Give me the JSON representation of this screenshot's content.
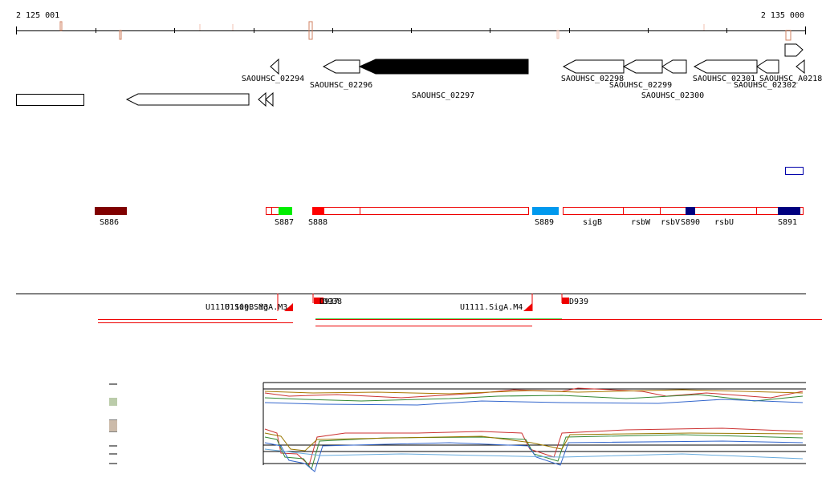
{
  "ruler": {
    "start": "2 125 001",
    "end": "2 135 000"
  },
  "genes": [
    "SAOUHSC_02294",
    "SAOUHSC_02296",
    "SAOUHSC_02297",
    "SAOUHSC_02298",
    "SAOUHSC_02299",
    "SAOUHSC_02300",
    "SAOUHSC_02301",
    "SAOUHSC_02302",
    "SAOUHSC_A0218"
  ],
  "regions": [
    "S886",
    "S887",
    "S888",
    "S889",
    "sigB",
    "rsbW",
    "rsbV",
    "S890",
    "rsbU",
    "S891"
  ],
  "features": [
    "U1110.SigB.M3",
    "U1109.SigA.M3",
    "D937",
    "D938",
    "U1111.SigA.M4",
    "D939"
  ]
}
